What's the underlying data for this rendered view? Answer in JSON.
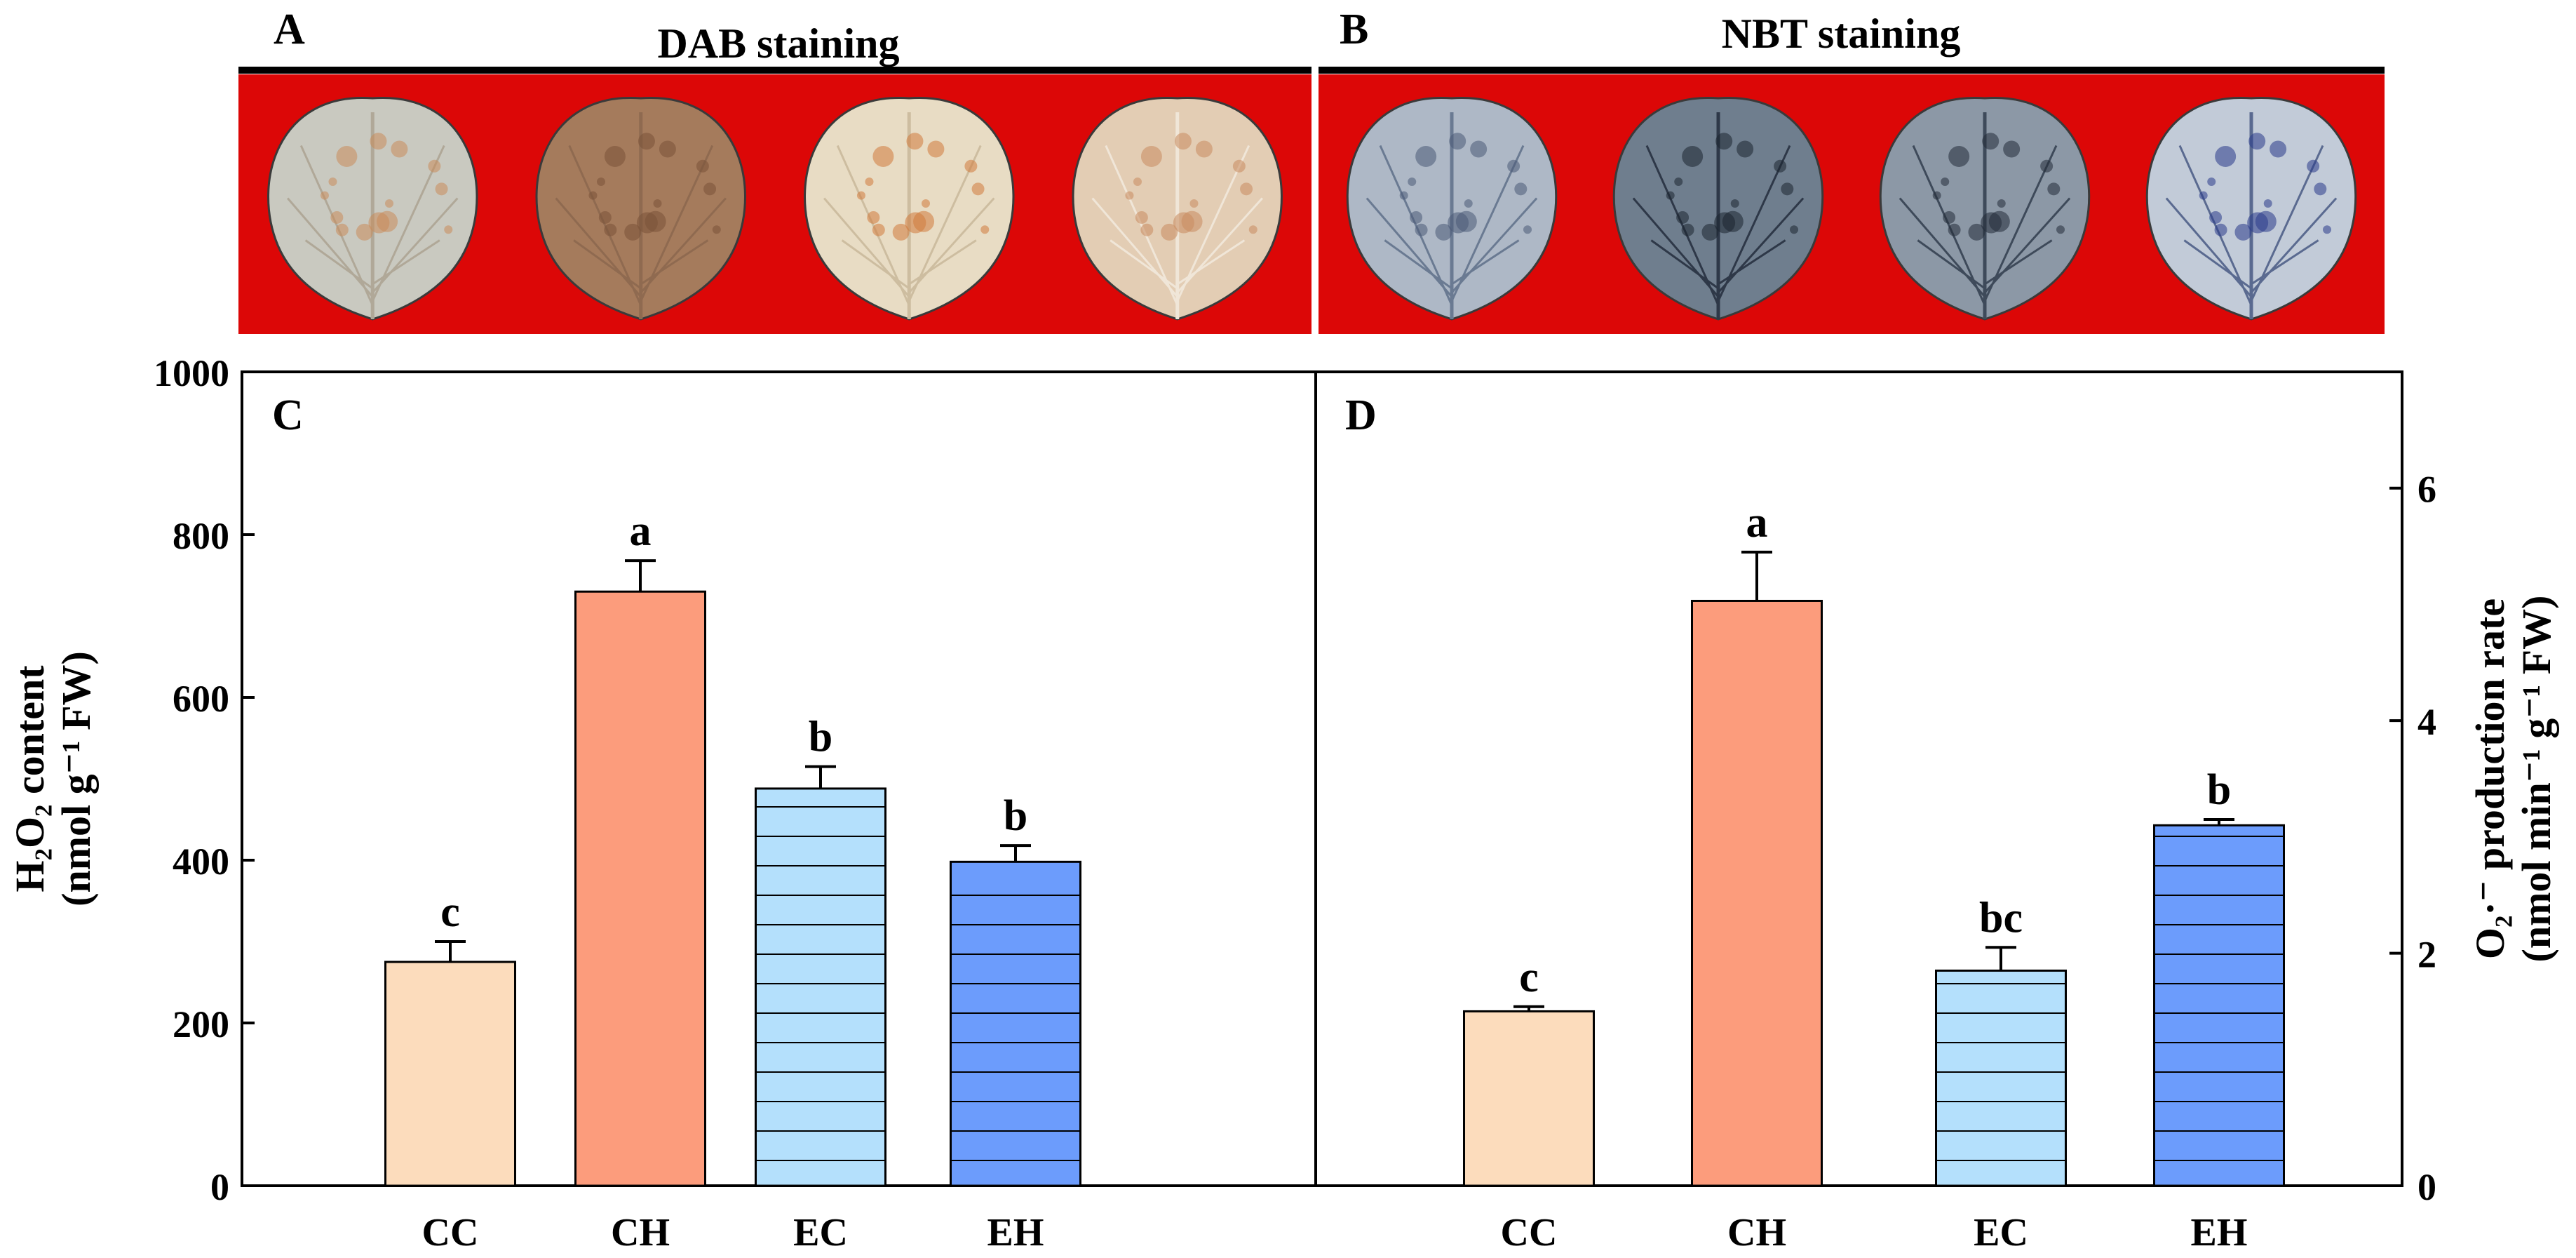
{
  "panels": {
    "A": {
      "letter": "A",
      "title": "DAB staining",
      "leaves": [
        {
          "group": "CC",
          "fill": "#c9c9c0",
          "vein": "#b0a898",
          "spots": "#c98a5a"
        },
        {
          "group": "CH",
          "fill": "#a57b5c",
          "vein": "#8f6a50",
          "spots": "#7a5238"
        },
        {
          "group": "EC",
          "fill": "#e8dcc4",
          "vein": "#cdbda0",
          "spots": "#d07a3c"
        },
        {
          "group": "EH",
          "fill": "#e3cdb4",
          "vein": "#f0e6d8",
          "spots": "#c98a5e"
        }
      ]
    },
    "B": {
      "letter": "B",
      "title": "NBT staining",
      "leaves": [
        {
          "group": "CC",
          "fill": "#aeb8c6",
          "vein": "#6a7a92",
          "spots": "#4a5a76"
        },
        {
          "group": "CH",
          "fill": "#6f7e8e",
          "vein": "#2e3848",
          "spots": "#1c2430"
        },
        {
          "group": "EC",
          "fill": "#8c98a6",
          "vein": "#3e4a5a",
          "spots": "#232c38"
        },
        {
          "group": "EH",
          "fill": "#c2cbd8",
          "vein": "#5a6a90",
          "spots": "#2a3a8a"
        }
      ]
    }
  },
  "colors": {
    "staining_background": "#dc0707",
    "CC": "#fcdcbc",
    "CH": "#fc9c7c",
    "EC": "#b4e0fc",
    "EH": "#6c9cfc"
  },
  "chart_data": [
    {
      "panel": "C",
      "type": "bar",
      "categories": [
        "CC",
        "CH",
        "EC",
        "EH"
      ],
      "values": [
        275,
        730,
        488,
        398
      ],
      "errors": [
        25,
        38,
        27,
        20
      ],
      "letters": [
        "c",
        "a",
        "b",
        "b"
      ],
      "hatched": [
        false,
        false,
        true,
        true
      ],
      "ylim": [
        0,
        1000
      ],
      "yticks": [
        0,
        200,
        400,
        600,
        800,
        1000
      ],
      "ytick_labels": [
        "0",
        "200",
        "400",
        "600",
        "800",
        "1000"
      ],
      "ylabel_line1": "H₂O₂ content",
      "ylabel_line2": "(nmol g⁻¹ FW)",
      "axis_side": "left"
    },
    {
      "panel": "D",
      "type": "bar",
      "categories": [
        "CC",
        "CH",
        "EC",
        "EH"
      ],
      "values": [
        1.5,
        5.03,
        1.85,
        3.1
      ],
      "errors": [
        0.04,
        0.42,
        0.2,
        0.05
      ],
      "letters": [
        "c",
        "a",
        "bc",
        "b"
      ],
      "hatched": [
        false,
        false,
        true,
        true
      ],
      "ylim": [
        0,
        7
      ],
      "yticks": [
        0,
        2,
        4,
        6
      ],
      "ytick_labels": [
        "0",
        "2",
        "4",
        "6"
      ],
      "ylabel_line1": "O₂·⁻ production rate",
      "ylabel_line2": "(nmol min⁻¹ g⁻¹ FW)",
      "axis_side": "right"
    }
  ]
}
